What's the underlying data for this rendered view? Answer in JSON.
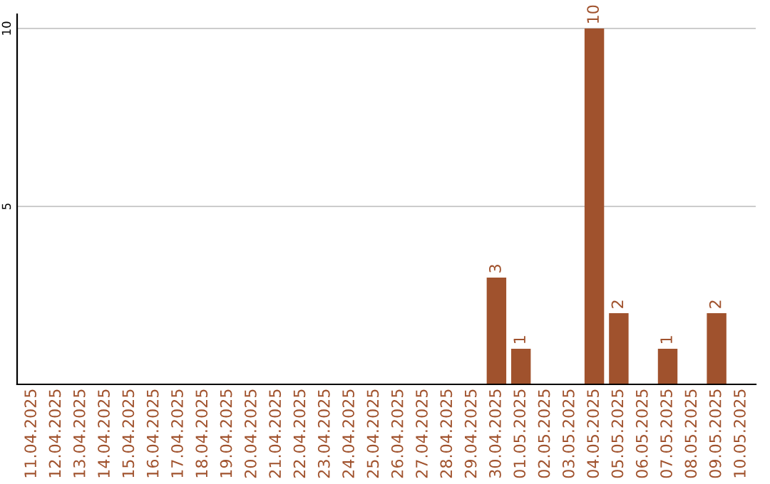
{
  "chart_data": {
    "type": "bar",
    "categories": [
      "11.04.2025",
      "12.04.2025",
      "13.04.2025",
      "14.04.2025",
      "15.04.2025",
      "16.04.2025",
      "17.04.2025",
      "18.04.2025",
      "19.04.2025",
      "20.04.2025",
      "21.04.2025",
      "22.04.2025",
      "23.04.2025",
      "24.04.2025",
      "25.04.2025",
      "26.04.2025",
      "27.04.2025",
      "28.04.2025",
      "29.04.2025",
      "30.04.2025",
      "01.05.2025",
      "02.05.2025",
      "03.05.2025",
      "04.05.2025",
      "05.05.2025",
      "06.05.2025",
      "07.05.2025",
      "08.05.2025",
      "09.05.2025",
      "10.05.2025"
    ],
    "values": [
      0,
      0,
      0,
      0,
      0,
      0,
      0,
      0,
      0,
      0,
      0,
      0,
      0,
      0,
      0,
      0,
      0,
      0,
      0,
      3,
      1,
      0,
      0,
      10,
      2,
      0,
      1,
      0,
      2,
      0
    ],
    "value_labels": [
      null,
      null,
      null,
      null,
      null,
      null,
      null,
      null,
      null,
      null,
      null,
      null,
      null,
      null,
      null,
      null,
      null,
      null,
      null,
      "3",
      "1",
      null,
      null,
      "10",
      "2",
      null,
      "1",
      null,
      "2",
      null
    ],
    "color": "#a0522d",
    "ylim": [
      0,
      10.4
    ],
    "yticks": [
      5,
      10
    ],
    "grid": "y"
  }
}
